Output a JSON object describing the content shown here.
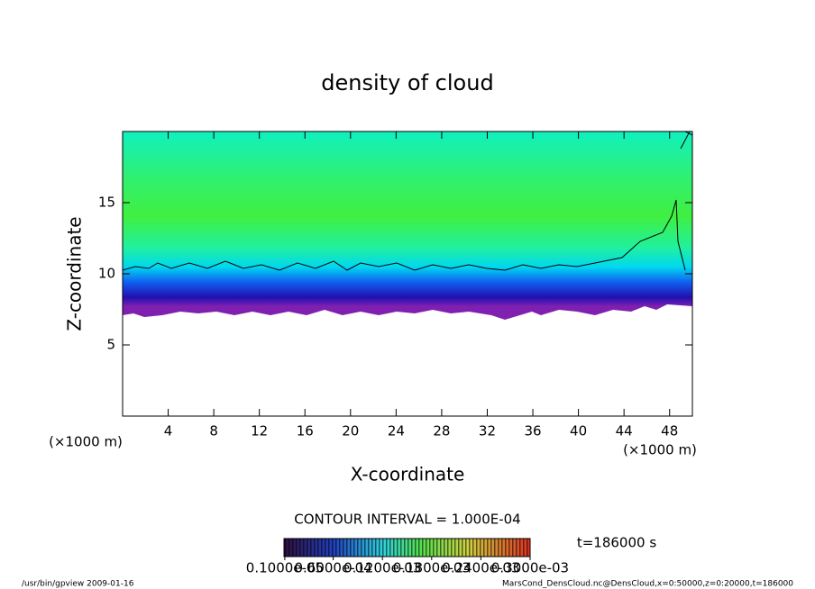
{
  "chart_data": {
    "type": "heatmap",
    "title": "density of cloud",
    "xlabel": "X-coordinate",
    "ylabel": "Z-coordinate",
    "xunit": "(×1000 m)",
    "yunit": "(×1000 m)",
    "xlim": [
      0,
      50
    ],
    "ylim": [
      0,
      20
    ],
    "xticks": [
      4,
      8,
      12,
      16,
      20,
      24,
      28,
      32,
      36,
      40,
      44,
      48
    ],
    "yticks": [
      5,
      10,
      15
    ],
    "contour_interval": "CONTOUR INTERVAL = 1.000E-04",
    "time_label": "t=186000 s",
    "colorbar": {
      "clim": [
        0,
        0.0003
      ],
      "ticks": [
        {
          "value": 1e-06,
          "label": "0.1000e-05"
        },
        {
          "value": 6e-05,
          "label": "0.6000e-04"
        },
        {
          "value": 0.00012,
          "label": "0.1200e-03"
        },
        {
          "value": 0.00018,
          "label": "0.1800e-03"
        },
        {
          "value": 0.00024,
          "label": "0.2400e-03"
        },
        {
          "value": 0.0003,
          "label": "0.3000e-03"
        }
      ]
    },
    "footer_left": "/usr/bin/gpview  2009-01-16",
    "footer_right": "MarsCond_DensCloud.nc@DensCloud,x=0:50000,z=0:20000,t=186000"
  }
}
